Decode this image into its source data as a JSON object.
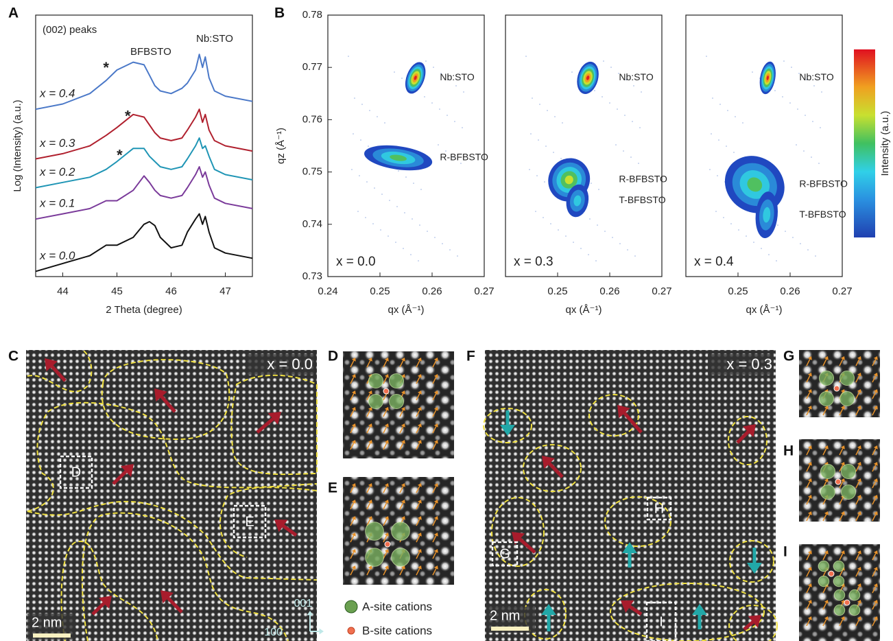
{
  "panel_labels": [
    "A",
    "B",
    "C",
    "D",
    "E",
    "F",
    "G",
    "H",
    "I"
  ],
  "chart_data": [
    {
      "type": "line",
      "annotations": [
        "(002) peaks",
        "BFBSTO",
        "Nb:STO"
      ],
      "xlabel": "2 Theta (degree)",
      "ylabel": "Log (Intensity) (a.u.)",
      "x": [
        43.5,
        44,
        44.5,
        44.8,
        45,
        45.3,
        45.5,
        45.6,
        45.7,
        45.8,
        46,
        46.2,
        46.3,
        46.45,
        46.52,
        46.58,
        46.63,
        46.7,
        46.8,
        47,
        47.5
      ],
      "series": [
        {
          "name": "x = 0.4",
          "color": "#4a78c8",
          "values": [
            6.4,
            6.6,
            7.0,
            7.5,
            7.9,
            8.2,
            8.1,
            7.7,
            7.3,
            7.1,
            7.0,
            7.2,
            7.4,
            7.9,
            8.5,
            8.0,
            8.4,
            7.6,
            7.1,
            6.9,
            6.7
          ]
        },
        {
          "name": "x = 0.3",
          "color": "#b0202e",
          "values": [
            4.5,
            4.7,
            5.0,
            5.4,
            5.7,
            6.2,
            6.1,
            5.8,
            5.5,
            5.3,
            5.2,
            5.3,
            5.6,
            6.1,
            6.4,
            5.9,
            6.2,
            5.6,
            5.2,
            5.0,
            4.8
          ]
        },
        {
          "name": "x = 0.2",
          "color": "#1f95b5",
          "values": [
            3.4,
            3.6,
            3.8,
            4.1,
            4.4,
            4.9,
            4.9,
            4.6,
            4.4,
            4.2,
            4.1,
            4.2,
            4.5,
            5.0,
            5.3,
            4.9,
            5.0,
            4.6,
            4.1,
            3.9,
            3.7
          ]
        },
        {
          "name": "x = 0.1",
          "color": "#7a3a9a",
          "values": [
            2.2,
            2.4,
            2.6,
            2.9,
            2.9,
            3.3,
            3.85,
            3.6,
            3.3,
            3.1,
            3.0,
            3.1,
            3.4,
            3.9,
            4.2,
            3.8,
            4.0,
            3.5,
            3.0,
            2.8,
            2.6
          ]
        },
        {
          "name": "x = 0.0",
          "color": "#111111",
          "values": [
            0.2,
            0.5,
            0.8,
            1.2,
            1.2,
            1.5,
            2.0,
            2.1,
            1.95,
            1.5,
            1.1,
            1.2,
            1.7,
            2.2,
            2.4,
            2.0,
            2.3,
            1.7,
            1.1,
            0.9,
            0.7
          ]
        }
      ],
      "markers": [
        {
          "text": "*",
          "x": 44.8,
          "y": 7.95,
          "color": "#4a78c8"
        },
        {
          "text": "*",
          "x": 45.2,
          "y": 6.1,
          "color": "#b0202e"
        },
        {
          "text": "*",
          "x": 45.05,
          "y": 4.6,
          "color": "#1f95b5"
        }
      ],
      "xlim": [
        43.5,
        47.5
      ],
      "ylim": [
        0,
        10
      ],
      "xticks": [
        44,
        45,
        46,
        47
      ]
    },
    {
      "type": "map",
      "label": "x = 0.0",
      "xlabel": "qx (Å⁻¹)",
      "ylabel": "qz (Å⁻¹)",
      "xlim": [
        0.24,
        0.27
      ],
      "xticks": [
        0.24,
        0.25,
        0.26,
        0.27
      ],
      "ylim": [
        0.73,
        0.78
      ],
      "yticks": [
        0.73,
        0.74,
        0.75,
        0.76,
        0.77,
        0.78
      ],
      "peaks": [
        {
          "name": "Nb:STO",
          "qx": 0.2568,
          "qz": 0.768
        },
        {
          "name": "R-BFBSTO",
          "qx": 0.2535,
          "qz": 0.7527
        }
      ]
    },
    {
      "type": "map",
      "label": "x = 0.3",
      "xlabel": "qx (Å⁻¹)",
      "xlim": [
        0.24,
        0.27
      ],
      "xticks": [
        0.25,
        0.26,
        0.27
      ],
      "ylim": [
        0.73,
        0.78
      ],
      "peaks": [
        {
          "name": "Nb:STO",
          "qx": 0.2558,
          "qz": 0.768
        },
        {
          "name": "R-BFBSTO",
          "qx": 0.2522,
          "qz": 0.7485
        },
        {
          "name": "T-BFBSTO",
          "qx": 0.2538,
          "qz": 0.7445
        }
      ]
    },
    {
      "type": "map",
      "label": "x = 0.4",
      "xlabel": "qx (Å⁻¹)",
      "colorbar_label": "Intensity (a.u.)",
      "xlim": [
        0.24,
        0.27
      ],
      "xticks": [
        0.25,
        0.26,
        0.27
      ],
      "ylim": [
        0.73,
        0.78
      ],
      "peaks": [
        {
          "name": "Nb:STO",
          "qx": 0.2557,
          "qz": 0.768
        },
        {
          "name": "R-BFBSTO",
          "qx": 0.2532,
          "qz": 0.7476
        },
        {
          "name": "T-BFBSTO",
          "qx": 0.2555,
          "qz": 0.7418
        }
      ]
    }
  ],
  "images": {
    "C": {
      "label": "x = 0.0",
      "boxes": [
        "D",
        "E"
      ],
      "scale": "2 nm",
      "axes": [
        "001",
        "100"
      ]
    },
    "F": {
      "label": "x = 0.3",
      "boxes": [
        "G",
        "H",
        "I"
      ],
      "scale": "2 nm"
    },
    "legend": [
      "A-site cations",
      "B-site cations"
    ]
  }
}
